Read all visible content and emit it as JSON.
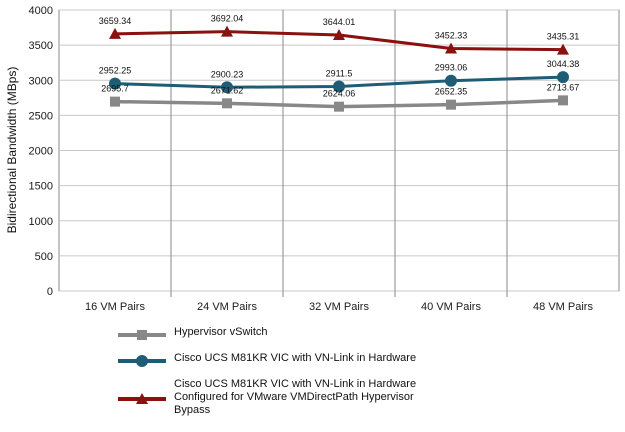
{
  "chart_data": {
    "type": "line",
    "ylabel": "Bidirectional Bandwidth (MBps)",
    "xlabel": "",
    "ylim": [
      0,
      4000
    ],
    "yticks": [
      0,
      500,
      1000,
      1500,
      2000,
      2500,
      3000,
      3500,
      4000
    ],
    "grid": true,
    "legend_position": "bottom",
    "categories": [
      "16 VM Pairs",
      "24 VM Pairs",
      "32 VM Pairs",
      "40 VM Pairs",
      "48 VM Pairs"
    ],
    "series": [
      {
        "name": "Hypervisor vSwitch",
        "values": [
          2695.7,
          2671.62,
          2624.06,
          2652.35,
          2713.67
        ],
        "labels": [
          "2695.7",
          "2671.62",
          "2624.06",
          "2652.35",
          "2713.67"
        ],
        "color": "#888888",
        "marker": "square"
      },
      {
        "name": "Cisco UCS M81KR VIC with VN-Link in Hardware",
        "values": [
          2952.25,
          2900.23,
          2911.5,
          2993.06,
          3044.38
        ],
        "labels": [
          "2952.25",
          "2900.23",
          "2911.5",
          "2993.06",
          "3044.38"
        ],
        "color": "#1f5c75",
        "marker": "circle"
      },
      {
        "name": "Cisco UCS M81KR VIC with VN-Link in Hardware\nConfigured for VMware VMDirectPath Hypervisor\nBypass",
        "values": [
          3659.34,
          3692.04,
          3644.01,
          3452.33,
          3435.31
        ],
        "labels": [
          "3659.34",
          "3692.04",
          "3644.01",
          "3452.33",
          "3435.31"
        ],
        "color": "#8b1010",
        "marker": "triangle"
      }
    ]
  }
}
